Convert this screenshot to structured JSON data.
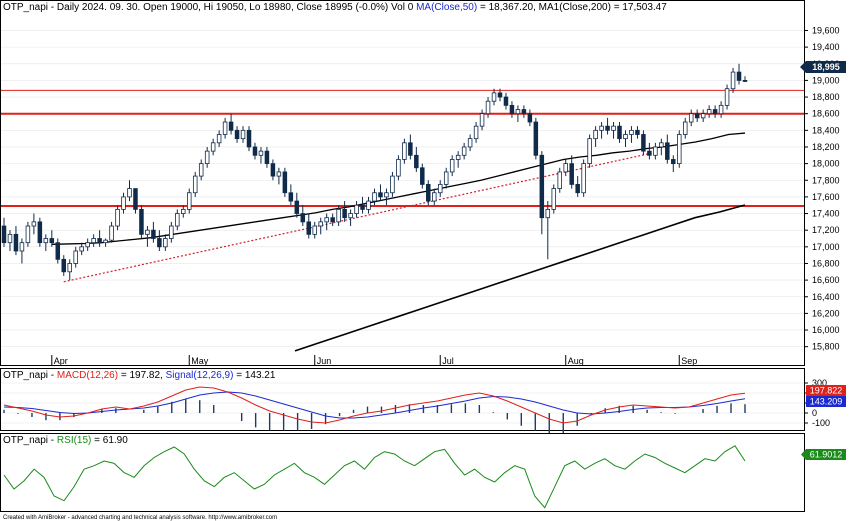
{
  "main": {
    "ticker": "OTP_napi",
    "title_prefix": "OTP_napi - Daily 2024. 09. 30. Open 19000, Hi 19050, Lo 18980, Close 18995 (-0.0%) Vol 0",
    "ma50_label": "MA(Close,50)",
    "ma50_value": " = 18,367.20,",
    "ma200_label": "MA1(Close,200)",
    "ma200_value": " = 17,503.47",
    "last_price_label": "18,995",
    "y_ticks": [
      "19,600",
      "19,400",
      "19,200",
      "19,000",
      "18,800",
      "18,600",
      "18,400",
      "18,200",
      "18,000",
      "17,800",
      "17,600",
      "17,400",
      "17,200",
      "17,000",
      "16,800",
      "16,600",
      "16,400",
      "16,200",
      "16,000",
      "15,800"
    ],
    "month_labels": [
      "Apr",
      "May",
      "Jun",
      "Jul",
      "Aug",
      "Sep"
    ]
  },
  "macd": {
    "name": "OTP_napi",
    "macd_label": "MACD(12,26)",
    "macd_value": " = 197.82,",
    "signal_label": "Signal(12,26,9)",
    "signal_value": " = 143.21",
    "y_ticks": [
      "300",
      "200",
      "100",
      "0",
      "-100"
    ],
    "macd_badge": "197.822",
    "signal_badge": "143.209"
  },
  "rsi": {
    "name": "OTP_napi",
    "rsi_label": "RSI(15)",
    "rsi_value": " = 61.90",
    "badge": "61.9012"
  },
  "footer": "Created with AmiBroker - advanced charting and technical analysis software. http://www.amibroker.com",
  "colors": {
    "up": "#ffffff",
    "down": "#102a4a",
    "ma50": "#000000",
    "ma200": "#000000",
    "hlines": "#e0201a",
    "trend": "#d2202a",
    "macd": "#e0201a",
    "signal": "#1a2ad0",
    "hist": "#1f3a66",
    "rsi": "#1a8a1a",
    "price_badge": "#102a4a",
    "macd_badge": "#e0201a",
    "signal_badge": "#1a2ad0",
    "rsi_badge": "#1a8a1a"
  },
  "chart_data": [
    {
      "type": "candlestick",
      "ylim": [
        15700,
        19750
      ],
      "categories_months": [
        "Apr",
        "May",
        "Jun",
        "Jul",
        "Aug",
        "Sep"
      ],
      "horizontal_levels": [
        18880,
        18600,
        17490
      ],
      "trendline_from": [
        16580,
        18120
      ],
      "candles": [
        [
          17250,
          17350,
          17000,
          17050
        ],
        [
          17050,
          17200,
          16950,
          17150
        ],
        [
          17150,
          17250,
          16900,
          16950
        ],
        [
          16950,
          17100,
          16800,
          17050
        ],
        [
          17050,
          17300,
          17000,
          17250
        ],
        [
          17250,
          17400,
          17150,
          17300
        ],
        [
          17300,
          17350,
          17000,
          17050
        ],
        [
          17050,
          17150,
          16950,
          17100
        ],
        [
          17100,
          17200,
          17000,
          17050
        ],
        [
          17050,
          17100,
          16800,
          16850
        ],
        [
          16850,
          16900,
          16650,
          16700
        ],
        [
          16700,
          16850,
          16600,
          16800
        ],
        [
          16800,
          17000,
          16750,
          16950
        ],
        [
          16950,
          17050,
          16900,
          17000
        ],
        [
          17000,
          17100,
          16950,
          17050
        ],
        [
          17050,
          17150,
          17000,
          17100
        ],
        [
          17100,
          17200,
          17000,
          17050
        ],
        [
          17050,
          17100,
          17000,
          17080
        ],
        [
          17080,
          17300,
          17050,
          17250
        ],
        [
          17250,
          17500,
          17200,
          17450
        ],
        [
          17450,
          17650,
          17400,
          17600
        ],
        [
          17600,
          17800,
          17550,
          17700
        ],
        [
          17700,
          17700,
          17400,
          17450
        ],
        [
          17450,
          17500,
          17100,
          17150
        ],
        [
          17150,
          17250,
          17000,
          17200
        ],
        [
          17200,
          17300,
          17050,
          17100
        ],
        [
          17100,
          17200,
          16950,
          17000
        ],
        [
          17000,
          17150,
          16950,
          17100
        ],
        [
          17100,
          17300,
          17050,
          17250
        ],
        [
          17250,
          17450,
          17200,
          17400
        ],
        [
          17400,
          17500,
          17350,
          17450
        ],
        [
          17450,
          17700,
          17400,
          17650
        ],
        [
          17650,
          17900,
          17600,
          17850
        ],
        [
          17850,
          18050,
          17800,
          18000
        ],
        [
          18000,
          18200,
          17950,
          18150
        ],
        [
          18150,
          18300,
          18100,
          18250
        ],
        [
          18250,
          18400,
          18200,
          18350
        ],
        [
          18350,
          18550,
          18300,
          18500
        ],
        [
          18500,
          18600,
          18350,
          18400
        ],
        [
          18400,
          18450,
          18250,
          18300
        ],
        [
          18300,
          18450,
          18250,
          18400
        ],
        [
          18400,
          18450,
          18150,
          18200
        ],
        [
          18200,
          18250,
          18050,
          18100
        ],
        [
          18100,
          18200,
          18000,
          18150
        ],
        [
          18150,
          18200,
          17950,
          18000
        ],
        [
          18000,
          18050,
          17800,
          17850
        ],
        [
          17850,
          17950,
          17750,
          17900
        ],
        [
          17900,
          17950,
          17600,
          17650
        ],
        [
          17650,
          17750,
          17500,
          17550
        ],
        [
          17550,
          17650,
          17350,
          17400
        ],
        [
          17400,
          17500,
          17250,
          17300
        ],
        [
          17300,
          17400,
          17100,
          17150
        ],
        [
          17150,
          17300,
          17100,
          17250
        ],
        [
          17250,
          17350,
          17150,
          17300
        ],
        [
          17300,
          17400,
          17200,
          17350
        ],
        [
          17350,
          17400,
          17250,
          17300
        ],
        [
          17300,
          17500,
          17250,
          17450
        ],
        [
          17450,
          17550,
          17300,
          17350
        ],
        [
          17350,
          17450,
          17250,
          17400
        ],
        [
          17400,
          17550,
          17350,
          17500
        ],
        [
          17500,
          17600,
          17400,
          17450
        ],
        [
          17450,
          17600,
          17400,
          17550
        ],
        [
          17550,
          17700,
          17500,
          17650
        ],
        [
          17650,
          17750,
          17550,
          17600
        ],
        [
          17600,
          17700,
          17500,
          17650
        ],
        [
          17650,
          17900,
          17600,
          17850
        ],
        [
          17850,
          18100,
          17800,
          18050
        ],
        [
          18050,
          18300,
          18000,
          18250
        ],
        [
          18250,
          18350,
          18050,
          18100
        ],
        [
          18100,
          18200,
          17900,
          17950
        ],
        [
          17950,
          18000,
          17700,
          17750
        ],
        [
          17750,
          17800,
          17500,
          17550
        ],
        [
          17550,
          17700,
          17500,
          17650
        ],
        [
          17650,
          17800,
          17600,
          17750
        ],
        [
          17750,
          17950,
          17700,
          17900
        ],
        [
          17900,
          18100,
          17850,
          18050
        ],
        [
          18050,
          18150,
          17950,
          18100
        ],
        [
          18100,
          18250,
          18050,
          18200
        ],
        [
          18200,
          18350,
          18150,
          18300
        ],
        [
          18300,
          18500,
          18250,
          18450
        ],
        [
          18450,
          18650,
          18400,
          18600
        ],
        [
          18600,
          18800,
          18550,
          18750
        ],
        [
          18750,
          18900,
          18700,
          18850
        ],
        [
          18850,
          18900,
          18750,
          18800
        ],
        [
          18800,
          18850,
          18650,
          18700
        ],
        [
          18700,
          18750,
          18550,
          18600
        ],
        [
          18600,
          18700,
          18500,
          18650
        ],
        [
          18650,
          18700,
          18550,
          18600
        ],
        [
          18600,
          18650,
          18450,
          18500
        ],
        [
          18500,
          18550,
          18050,
          18100
        ],
        [
          18100,
          18150,
          17150,
          17350
        ],
        [
          17350,
          17550,
          16850,
          17450
        ],
        [
          17450,
          17750,
          17400,
          17700
        ],
        [
          17700,
          17950,
          17650,
          17900
        ],
        [
          17900,
          18050,
          17850,
          18000
        ],
        [
          18000,
          18100,
          17700,
          17750
        ],
        [
          17750,
          17850,
          17600,
          17650
        ],
        [
          17650,
          18050,
          17600,
          18000
        ],
        [
          18000,
          18350,
          17950,
          18300
        ],
        [
          18300,
          18450,
          18200,
          18400
        ],
        [
          18400,
          18500,
          18300,
          18450
        ],
        [
          18450,
          18550,
          18350,
          18400
        ],
        [
          18400,
          18500,
          18300,
          18450
        ],
        [
          18450,
          18500,
          18250,
          18300
        ],
        [
          18300,
          18400,
          18200,
          18350
        ],
        [
          18350,
          18450,
          18250,
          18400
        ],
        [
          18400,
          18450,
          18300,
          18350
        ],
        [
          18350,
          18400,
          18100,
          18150
        ],
        [
          18150,
          18250,
          18050,
          18100
        ],
        [
          18100,
          18250,
          18050,
          18200
        ],
        [
          18200,
          18300,
          18100,
          18250
        ],
        [
          18250,
          18350,
          18000,
          18050
        ],
        [
          18050,
          18100,
          17900,
          18000
        ],
        [
          18000,
          18400,
          17950,
          18350
        ],
        [
          18350,
          18550,
          18300,
          18500
        ],
        [
          18500,
          18650,
          18450,
          18600
        ],
        [
          18600,
          18650,
          18500,
          18550
        ],
        [
          18550,
          18650,
          18500,
          18600
        ],
        [
          18600,
          18700,
          18550,
          18650
        ],
        [
          18650,
          18700,
          18550,
          18600
        ],
        [
          18600,
          18750,
          18550,
          18700
        ],
        [
          18700,
          18950,
          18650,
          18900
        ],
        [
          18900,
          19150,
          18850,
          19100
        ],
        [
          19100,
          19200,
          18950,
          19000
        ],
        [
          19000,
          19050,
          18980,
          18995
        ]
      ],
      "ma50": [
        17030,
        17035,
        17040,
        17050,
        17070,
        17090,
        17110,
        17140,
        17170,
        17200,
        17230,
        17260,
        17290,
        17320,
        17350,
        17380,
        17410,
        17450,
        17480,
        17520,
        17560,
        17600,
        17640,
        17680,
        17720,
        17760,
        17800,
        17850,
        17900,
        17950,
        18000,
        18050,
        18080,
        18100,
        18130,
        18150,
        18180,
        18200,
        18230,
        18260,
        18300,
        18350,
        18367
      ],
      "ma200": [
        15750,
        15850,
        15950,
        16050,
        16150,
        16250,
        16350,
        16450,
        16550,
        16650,
        16750,
        16850,
        16950,
        17050,
        17150,
        17250,
        17350,
        17420,
        17503
      ]
    },
    {
      "type": "line",
      "name": "MACD",
      "ylim": [
        -150,
        330
      ],
      "series": [
        {
          "name": "MACD(12,26)",
          "values": [
            80,
            50,
            20,
            -20,
            -40,
            -30,
            0,
            40,
            60,
            40,
            70,
            110,
            170,
            230,
            260,
            250,
            210,
            150,
            80,
            20,
            -20,
            -60,
            -90,
            -100,
            -70,
            -30,
            0,
            20,
            50,
            80,
            100,
            120,
            150,
            180,
            200,
            170,
            120,
            60,
            0,
            -60,
            -100,
            -80,
            -20,
            30,
            60,
            80,
            70,
            60,
            50,
            60,
            100,
            140,
            180,
            198
          ]
        },
        {
          "name": "Signal(12,26,9)",
          "values": [
            60,
            55,
            45,
            25,
            5,
            -5,
            0,
            15,
            30,
            40,
            50,
            70,
            100,
            140,
            180,
            200,
            210,
            200,
            170,
            130,
            90,
            50,
            10,
            -30,
            -50,
            -50,
            -40,
            -20,
            0,
            25,
            50,
            70,
            95,
            120,
            150,
            165,
            160,
            140,
            110,
            70,
            30,
            0,
            -10,
            0,
            15,
            35,
            50,
            55,
            55,
            60,
            75,
            95,
            120,
            143
          ]
        }
      ]
    },
    {
      "type": "line",
      "name": "RSI",
      "ylim": [
        20,
        80
      ],
      "series": [
        {
          "name": "RSI(15)",
          "values": [
            50,
            38,
            45,
            55,
            48,
            32,
            28,
            40,
            55,
            58,
            62,
            60,
            52,
            48,
            58,
            65,
            70,
            74,
            68,
            55,
            45,
            40,
            48,
            52,
            45,
            38,
            42,
            50,
            55,
            60,
            52,
            48,
            42,
            50,
            58,
            62,
            55,
            65,
            70,
            68,
            62,
            58,
            64,
            70,
            72,
            60,
            50,
            55,
            48,
            44,
            52,
            58,
            55,
            32,
            22,
            40,
            58,
            62,
            55,
            60,
            64,
            58,
            55,
            62,
            68,
            65,
            60,
            56,
            52,
            58,
            64,
            62,
            70,
            75,
            62
          ]
        }
      ]
    }
  ]
}
